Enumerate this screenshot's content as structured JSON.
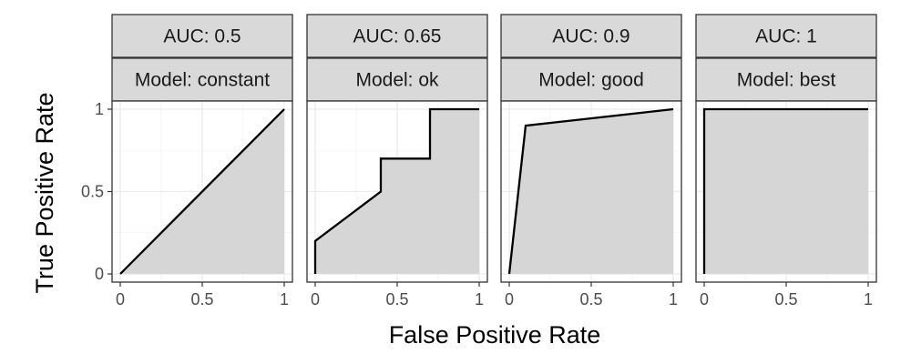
{
  "chart_data": {
    "type": "area",
    "xlabel": "False Positive Rate",
    "ylabel": "True Positive Rate",
    "xlim": [
      0,
      1
    ],
    "ylim": [
      0,
      1
    ],
    "x_ticks": [
      0,
      0.5,
      1
    ],
    "x_tick_labels": [
      "0",
      "0.5",
      "1"
    ],
    "y_ticks": [
      0,
      0.5,
      1
    ],
    "y_tick_labels": [
      "0",
      "0.5",
      "1"
    ],
    "grid": true,
    "fill_color": "#d6d6d6",
    "line_color": "#000000",
    "panels": [
      {
        "auc_label": "AUC: 0.5",
        "model_label": "Model: constant",
        "x": [
          0,
          1
        ],
        "y": [
          0,
          1
        ]
      },
      {
        "auc_label": "AUC: 0.65",
        "model_label": "Model: ok",
        "x": [
          0,
          0,
          0.4,
          0.4,
          0.7,
          0.7,
          1
        ],
        "y": [
          0,
          0.2,
          0.5,
          0.7,
          0.7,
          1,
          1
        ]
      },
      {
        "auc_label": "AUC: 0.9",
        "model_label": "Model: good",
        "x": [
          0,
          0.1,
          1
        ],
        "y": [
          0,
          0.9,
          1
        ]
      },
      {
        "auc_label": "AUC: 1",
        "model_label": "Model: best",
        "x": [
          0,
          0,
          1
        ],
        "y": [
          0,
          1,
          1
        ]
      }
    ]
  }
}
